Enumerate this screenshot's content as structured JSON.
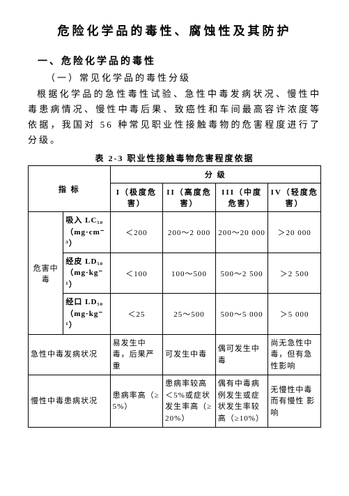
{
  "title": "危险化学品的毒性、腐蚀性及其防护",
  "section_heading": "一、危险化学品的毒性",
  "sub_heading": "（一）常见化学品的毒性分级",
  "paragraph": "根据化学品的急性毒性试验、急性中毒发病状况、慢性中毒患病情况、慢性中毒后果、致癌性和车间最高容许浓度等依据，我国对 56 种常见职业性接触毒物的危害程度进行了分级。",
  "table_caption": "表 2-3 职业性接触毒物危害程度依据",
  "table": {
    "header_indicator": "指  标",
    "header_group": "分      级",
    "levels": {
      "l1": "I（极度危害）",
      "l2": "II（高度危害）",
      "l3": "III（中度危害）",
      "l4": "IV（轻度危害）"
    },
    "group_acute": "危害中毒",
    "rows_acute": {
      "r1": {
        "measure": "吸入 LC₅₀（mg·cm⁻³）",
        "v1": "＜200",
        "v2": "200～2 000",
        "v3": "200～20 000",
        "v4": "＞20 000"
      },
      "r2": {
        "measure": "经皮 LD₅₀（mg·kg⁻¹）",
        "v1": "＜100",
        "v2": "100～500",
        "v3": "500～2 500",
        "v4": "＞2 500"
      },
      "r3": {
        "measure": "经口 LD₅₀（mg·kg⁻¹）",
        "v1": "＜25",
        "v2": "25～500",
        "v3": "500～5 000",
        "v4": "＞5 000"
      }
    },
    "rows_other": {
      "r4": {
        "label": "急性中毒发病状况",
        "v1": "易发生中毒，后果严重",
        "v2": "可发生中毒",
        "v3": "偶可发生中毒",
        "v4": "尚无急性中毒，但有急性影响"
      },
      "r5": {
        "label": "慢性中毒患病状况",
        "v1": "患病率高（≥5%）",
        "v2": "患病率较高＜5%或症状发生率高（≥20%）",
        "v3": "偶有中毒病例发生或症状发生率较高（≥10%）",
        "v4": "无慢性中毒而有慢性 影响"
      }
    }
  },
  "style": {
    "text_color": "#000000",
    "bg_color": "#ffffff",
    "border_color": "#000000"
  }
}
